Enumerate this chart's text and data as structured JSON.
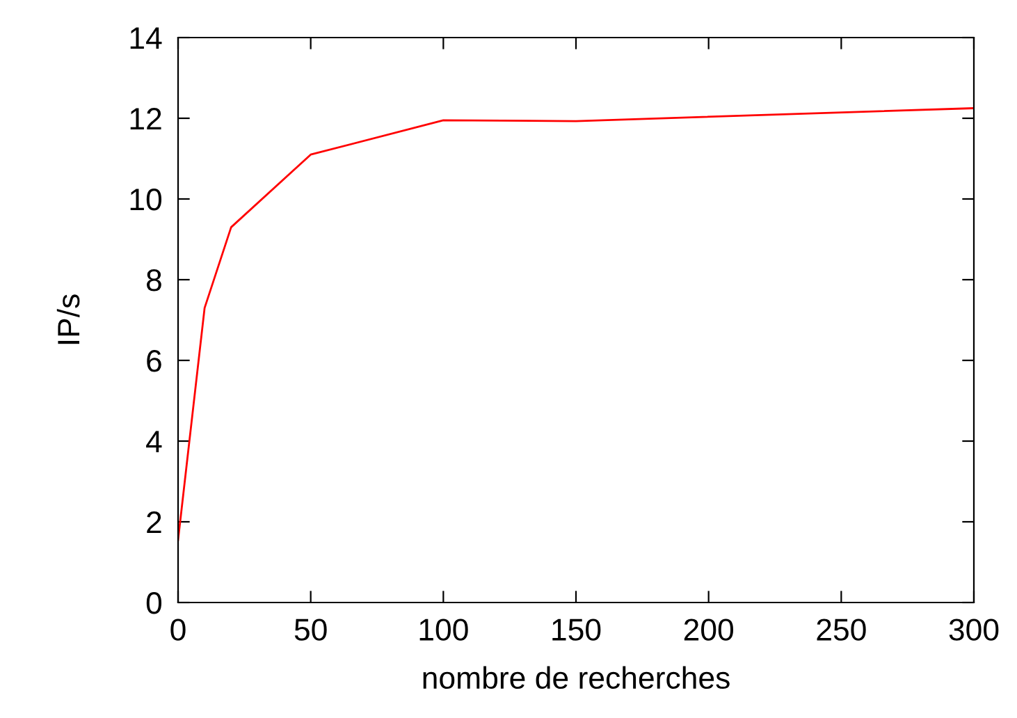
{
  "chart_data": {
    "type": "line",
    "xlabel": "nombre de recherches",
    "ylabel": "IP/s",
    "x": [
      0,
      10,
      20,
      50,
      100,
      150,
      300
    ],
    "series": [
      {
        "color": "#ff0000",
        "values": [
          1.55,
          7.3,
          9.3,
          11.1,
          11.95,
          11.93,
          12.25
        ]
      }
    ],
    "xlim": [
      0,
      300
    ],
    "xticks": [
      0,
      50,
      100,
      150,
      200,
      250,
      300
    ],
    "ylim": [
      0,
      14
    ],
    "yticks": [
      0,
      2,
      4,
      6,
      8,
      10,
      12,
      14
    ],
    "grid": false
  }
}
